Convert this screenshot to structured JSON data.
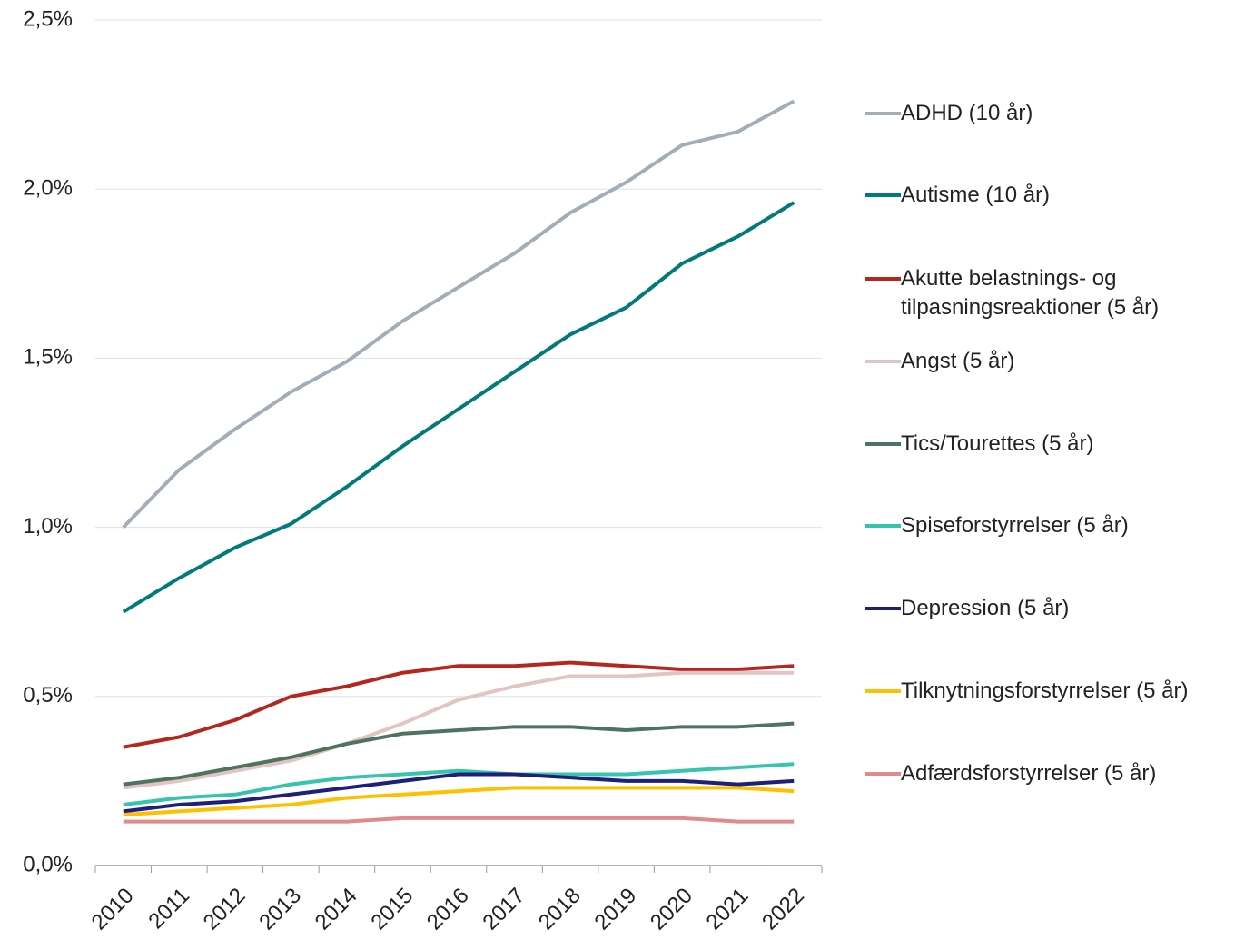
{
  "chart_data": {
    "type": "line",
    "categories": [
      "2010",
      "2011",
      "2012",
      "2013",
      "2014",
      "2015",
      "2016",
      "2017",
      "2018",
      "2019",
      "2020",
      "2021",
      "2022"
    ],
    "ylim": [
      0,
      2.5
    ],
    "yticks": [
      {
        "value": 0,
        "label": "0,0%"
      },
      {
        "value": 0.5,
        "label": "0,5%"
      },
      {
        "value": 1,
        "label": "1,0%"
      },
      {
        "value": 1.5,
        "label": "1,5%"
      },
      {
        "value": 2,
        "label": "2,0%"
      },
      {
        "value": 2.5,
        "label": "2,5%"
      }
    ],
    "grid": true,
    "legend": "right",
    "series": [
      {
        "name": "ADHD (10 år)",
        "color": "#a3adb8",
        "values": [
          1.0,
          1.17,
          1.29,
          1.4,
          1.49,
          1.61,
          1.71,
          1.81,
          1.93,
          2.02,
          2.13,
          2.17,
          2.26
        ]
      },
      {
        "name": "Autisme (10 år)",
        "color": "#007a7a",
        "values": [
          0.75,
          0.85,
          0.94,
          1.01,
          1.12,
          1.24,
          1.35,
          1.46,
          1.57,
          1.65,
          1.78,
          1.86,
          1.96
        ]
      },
      {
        "name": "Akutte belastnings- og tilpasningsreaktioner (5 år)",
        "color": "#b5261e",
        "values": [
          0.35,
          0.38,
          0.43,
          0.5,
          0.53,
          0.57,
          0.59,
          0.59,
          0.6,
          0.59,
          0.58,
          0.58,
          0.59
        ]
      },
      {
        "name": "Angst (5 år)",
        "color": "#e2c4c4",
        "values": [
          0.23,
          0.25,
          0.28,
          0.31,
          0.36,
          0.42,
          0.49,
          0.53,
          0.56,
          0.56,
          0.57,
          0.57,
          0.57
        ]
      },
      {
        "name": "Tics/Tourettes (5 år)",
        "color": "#4e7360",
        "values": [
          0.24,
          0.26,
          0.29,
          0.32,
          0.36,
          0.39,
          0.4,
          0.41,
          0.41,
          0.4,
          0.41,
          0.41,
          0.42
        ]
      },
      {
        "name": "Spiseforstyrrelser (5 år)",
        "color": "#35c4ad",
        "values": [
          0.18,
          0.2,
          0.21,
          0.24,
          0.26,
          0.27,
          0.28,
          0.27,
          0.27,
          0.27,
          0.28,
          0.29,
          0.3
        ]
      },
      {
        "name": "Depression (5 år)",
        "color": "#1d1f7a",
        "values": [
          0.16,
          0.18,
          0.19,
          0.21,
          0.23,
          0.25,
          0.27,
          0.27,
          0.26,
          0.25,
          0.25,
          0.24,
          0.25
        ]
      },
      {
        "name": "Tilknytningsforstyrrelser (5 år)",
        "color": "#ffc000",
        "values": [
          0.15,
          0.16,
          0.17,
          0.18,
          0.2,
          0.21,
          0.22,
          0.23,
          0.23,
          0.23,
          0.23,
          0.23,
          0.22
        ]
      },
      {
        "name": "Adfærdsforstyrrelser (5 år)",
        "color": "#e08a8a",
        "values": [
          0.13,
          0.13,
          0.13,
          0.13,
          0.13,
          0.14,
          0.14,
          0.14,
          0.14,
          0.14,
          0.14,
          0.13,
          0.13
        ]
      }
    ]
  }
}
